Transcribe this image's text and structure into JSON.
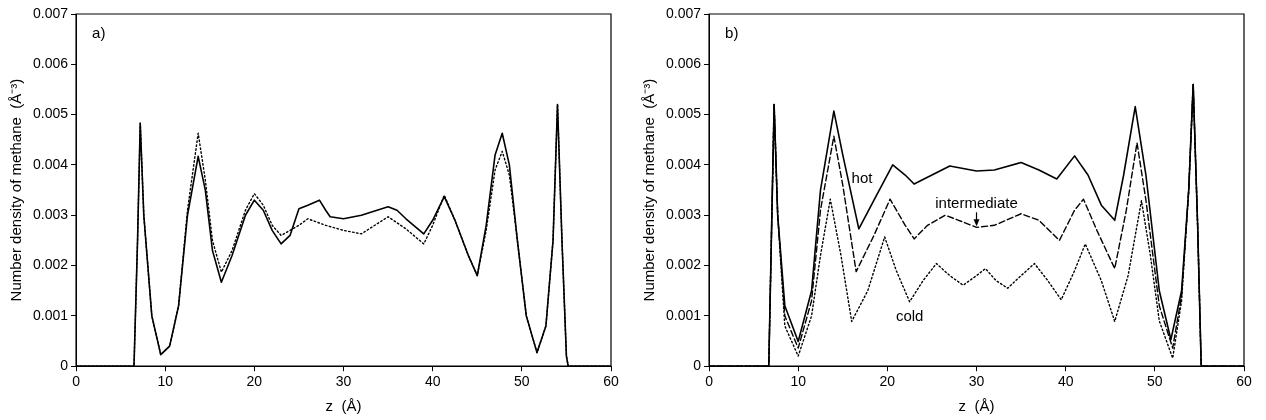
{
  "chart_data": [
    {
      "type": "line",
      "xlabel": "z  (Å)",
      "ylabel": "Number density of methane  (Å⁻³)",
      "annotations": [
        "a)"
      ],
      "xlim": [
        0,
        60
      ],
      "xticks": [
        0,
        10,
        20,
        30,
        40,
        50,
        60
      ],
      "ylim": [
        0,
        0.007
      ],
      "yticks": [
        0,
        0.001,
        0.002,
        0.003,
        0.004,
        0.005,
        0.006,
        0.007
      ],
      "grid": false,
      "legend": false,
      "marker": "none",
      "series": [
        {
          "color": "#000000",
          "line_style": "solid",
          "x": [
            0,
            6.5,
            6.9,
            7.2,
            7.6,
            8.5,
            9.5,
            10.5,
            11.5,
            12.5,
            13.7,
            14.5,
            15.3,
            16.3,
            17.5,
            19,
            20,
            21,
            22,
            23,
            24,
            25,
            26,
            27.3,
            28,
            28.5,
            30,
            32,
            35,
            36,
            37,
            39,
            40,
            41.3,
            42.5,
            44,
            45,
            46,
            47,
            47.8,
            48.6,
            49.5,
            50.5,
            51.7,
            52.7,
            53.5,
            54,
            54.5,
            55,
            55.2,
            60
          ],
          "values": [
            0,
            0,
            0.0025,
            0.00483,
            0.003,
            0.001,
            0.00023,
            0.0004,
            0.0012,
            0.003,
            0.00417,
            0.0035,
            0.0023,
            0.00167,
            0.0022,
            0.003,
            0.0033,
            0.0031,
            0.0027,
            0.00243,
            0.0026,
            0.00313,
            0.0032,
            0.0033,
            0.0031,
            0.00297,
            0.00293,
            0.003,
            0.00317,
            0.0031,
            0.00293,
            0.00263,
            0.0029,
            0.00337,
            0.0029,
            0.0022,
            0.0018,
            0.0028,
            0.0042,
            0.00463,
            0.004,
            0.0025,
            0.001,
            0.00027,
            0.0008,
            0.0025,
            0.0052,
            0.0025,
            0.0002,
            0,
            0
          ]
        },
        {
          "color": "#000000",
          "line_style": "dotted",
          "x": [
            0,
            6.5,
            6.9,
            7.2,
            7.6,
            8.5,
            9.5,
            10.5,
            11.5,
            12.5,
            13.7,
            14.5,
            15.3,
            16.3,
            17.5,
            19,
            20,
            21,
            22,
            23,
            24,
            25,
            26,
            28,
            30,
            32,
            35,
            37,
            39,
            40,
            41.3,
            42.5,
            44,
            45,
            46,
            47,
            47.8,
            48.6,
            49.5,
            50.5,
            51.7,
            52.7,
            53.5,
            54,
            54.5,
            55,
            55.2,
            60
          ],
          "values": [
            0,
            0,
            0.0025,
            0.00483,
            0.003,
            0.001,
            0.00023,
            0.0004,
            0.0012,
            0.0031,
            0.00463,
            0.0037,
            0.0025,
            0.00187,
            0.0023,
            0.0031,
            0.00343,
            0.0032,
            0.0028,
            0.0026,
            0.0027,
            0.0028,
            0.00293,
            0.0028,
            0.0027,
            0.00263,
            0.00297,
            0.00273,
            0.00243,
            0.0028,
            0.0034,
            0.0029,
            0.0022,
            0.0018,
            0.0027,
            0.0039,
            0.00427,
            0.0038,
            0.0025,
            0.001,
            0.00027,
            0.0008,
            0.0025,
            0.0052,
            0.0025,
            0.0002,
            0,
            0
          ]
        }
      ]
    },
    {
      "type": "line",
      "xlabel": "z  (Å)",
      "ylabel": "Number density of methane  (Å⁻³)",
      "annotations": [
        "b)"
      ],
      "xlim": [
        0,
        60
      ],
      "xticks": [
        0,
        10,
        20,
        30,
        40,
        50,
        60
      ],
      "ylim": [
        0,
        0.007
      ],
      "yticks": [
        0,
        0.001,
        0.002,
        0.003,
        0.004,
        0.005,
        0.006,
        0.007
      ],
      "grid": false,
      "legend": false,
      "marker": "none",
      "series": [
        {
          "name": "hot",
          "color": "#000000",
          "line_style": "solid",
          "x": [
            0,
            6.7,
            7,
            7.3,
            7.7,
            8.5,
            10,
            11.5,
            12.5,
            14,
            15,
            16.8,
            18.5,
            20.6,
            22,
            23,
            25,
            27,
            30,
            32,
            35,
            37,
            39,
            41,
            42.5,
            44,
            45.5,
            46.5,
            47.8,
            49,
            50.5,
            51.8,
            53,
            53.8,
            54.3,
            54.8,
            55.2,
            60
          ],
          "values": [
            0,
            0,
            0.0026,
            0.0052,
            0.003,
            0.0012,
            0.00049,
            0.0015,
            0.0035,
            0.00507,
            0.0042,
            0.00273,
            0.0033,
            0.004,
            0.0038,
            0.00362,
            0.0038,
            0.00398,
            0.00388,
            0.0039,
            0.00405,
            0.0039,
            0.00372,
            0.00418,
            0.0038,
            0.0032,
            0.0029,
            0.0038,
            0.00516,
            0.0038,
            0.0015,
            0.00053,
            0.0015,
            0.0035,
            0.0056,
            0.0028,
            0,
            0
          ]
        },
        {
          "name": "intermediate",
          "color": "#000000",
          "line_style": "dashed",
          "x": [
            0,
            6.7,
            7,
            7.3,
            7.7,
            8.5,
            10,
            11.5,
            12.5,
            14,
            15,
            16.5,
            18.5,
            20.3,
            22,
            23,
            24.5,
            26.5,
            28,
            30,
            32,
            35,
            37,
            39.3,
            41,
            42,
            43.5,
            45.5,
            46.8,
            48,
            49,
            50.5,
            52,
            53,
            53.8,
            54.3,
            54.8,
            55.2,
            60
          ],
          "values": [
            0,
            0,
            0.0026,
            0.0052,
            0.003,
            0.001,
            0.00036,
            0.0013,
            0.0031,
            0.00457,
            0.0036,
            0.00188,
            0.0026,
            0.00332,
            0.0028,
            0.00253,
            0.0028,
            0.003,
            0.0029,
            0.00276,
            0.0028,
            0.00303,
            0.0029,
            0.0025,
            0.0031,
            0.00332,
            0.0027,
            0.00194,
            0.0031,
            0.00444,
            0.0033,
            0.0012,
            0.00036,
            0.0014,
            0.0035,
            0.0056,
            0.0028,
            0,
            0
          ]
        },
        {
          "name": "cold",
          "color": "#000000",
          "line_style": "dotted",
          "x": [
            0,
            6.7,
            7,
            7.3,
            7.7,
            8.5,
            10,
            11.5,
            12.5,
            13.6,
            14.8,
            16,
            17.8,
            19.7,
            21,
            22.5,
            24,
            25.5,
            27,
            28.5,
            30,
            31,
            32.2,
            33.5,
            35,
            36.5,
            38,
            39.5,
            41,
            42.2,
            44,
            45.5,
            47,
            48.5,
            49.5,
            50.5,
            52,
            53,
            53.8,
            54.3,
            54.8,
            55.2,
            60
          ],
          "values": [
            0,
            0,
            0.0026,
            0.0052,
            0.003,
            0.0008,
            0.0002,
            0.001,
            0.0022,
            0.00332,
            0.0022,
            0.00089,
            0.0015,
            0.00257,
            0.0019,
            0.00128,
            0.0017,
            0.00204,
            0.0018,
            0.00161,
            0.0018,
            0.00194,
            0.0017,
            0.00155,
            0.0018,
            0.00204,
            0.0017,
            0.00132,
            0.0019,
            0.00243,
            0.0017,
            0.00089,
            0.0018,
            0.00329,
            0.0022,
            0.0009,
            0.00016,
            0.0013,
            0.0035,
            0.0056,
            0.0028,
            0,
            0
          ]
        }
      ]
    }
  ]
}
